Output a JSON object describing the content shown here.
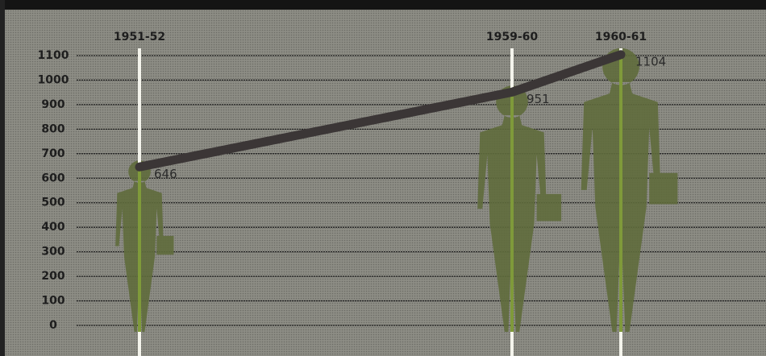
{
  "chart_data": {
    "type": "line",
    "categories": [
      "1951-52",
      "1959-60",
      "1960-61"
    ],
    "values": [
      646,
      951,
      1104
    ],
    "color": "#3b3636",
    "figure_color": "#5f6b3c",
    "ylim": [
      0,
      1100
    ],
    "yticks": [
      0,
      100,
      200,
      300,
      400,
      500,
      600,
      700,
      800,
      900,
      1000,
      1100
    ],
    "grid": true
  }
}
